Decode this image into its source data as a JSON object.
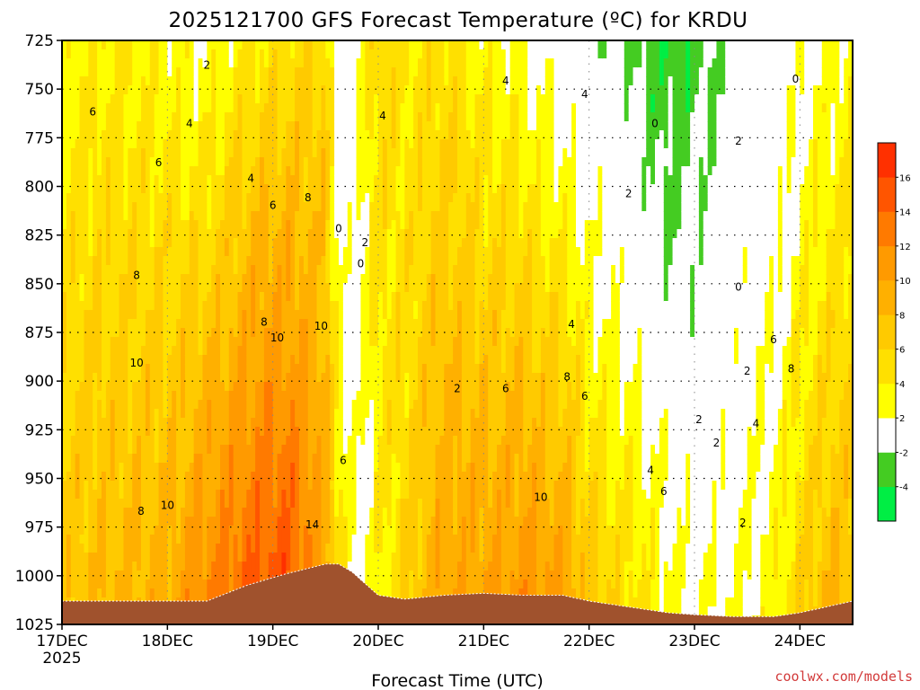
{
  "chart_data": {
    "type": "heatmap",
    "title": "2025121700 GFS Forecast Temperature (ºC) for KRDU",
    "xlabel": "Forecast Time (UTC)",
    "ylabel": "",
    "x_ticks": [
      "17DEC",
      "18DEC",
      "19DEC",
      "20DEC",
      "21DEC",
      "22DEC",
      "23DEC",
      "24DEC"
    ],
    "x_tick_year": "2025",
    "x_range_hours": [
      0,
      180
    ],
    "y_ticks": [
      725,
      750,
      775,
      800,
      825,
      850,
      875,
      900,
      925,
      950,
      975,
      1000,
      1025
    ],
    "y_range_hpa": [
      725,
      1025
    ],
    "grid": true,
    "colorbar": {
      "levels": [
        -6,
        -4,
        -2,
        2,
        4,
        6,
        8,
        10,
        12,
        14,
        16,
        18
      ],
      "labels": [
        "-4",
        "-2",
        "2",
        "4",
        "6",
        "8",
        "10",
        "12",
        "14",
        "16"
      ],
      "label_values": [
        -4,
        -2,
        2,
        4,
        6,
        8,
        10,
        12,
        14,
        16
      ],
      "colors": [
        "#00ee44",
        "#44cc22",
        "#ffffff",
        "#ffff00",
        "#ffe000",
        "#ffca00",
        "#ffb000",
        "#ff9a00",
        "#ff7a00",
        "#ff5500",
        "#ff3000"
      ]
    },
    "zero_line_color": "#b0127a",
    "terrain_color": "#a0522d",
    "profile_times_hours": [
      0,
      9,
      24,
      33,
      42,
      51,
      60,
      63,
      66,
      69,
      72,
      78,
      87,
      96,
      105,
      114,
      120,
      129,
      138,
      144,
      153,
      162,
      168,
      174,
      180
    ],
    "profile_surface_hpa": [
      1013,
      1013,
      1013,
      1013,
      1005,
      999,
      994,
      994,
      998,
      1004,
      1010,
      1012,
      1010,
      1009,
      1010,
      1010,
      1013,
      1016,
      1019,
      1020,
      1021,
      1021,
      1019,
      1016,
      1013
    ],
    "profile_t_surface": [
      7,
      8,
      9,
      12,
      14,
      15,
      10,
      5,
      2,
      1,
      3,
      6,
      10,
      10,
      11,
      10,
      7,
      5,
      3,
      2,
      2,
      3,
      6,
      8,
      8
    ],
    "profile_t_top": [
      3,
      4,
      3,
      2,
      4,
      5,
      6,
      -1,
      0,
      4,
      6,
      4,
      5,
      3,
      2,
      0,
      -1,
      -2,
      -4,
      -3,
      -1,
      0,
      1,
      2,
      3
    ],
    "contour_labels": [
      {
        "text": "2",
        "t": 33,
        "p": 738
      },
      {
        "text": "6",
        "t": 7,
        "p": 762
      },
      {
        "text": "4",
        "t": 29,
        "p": 768
      },
      {
        "text": "6",
        "t": 22,
        "p": 788
      },
      {
        "text": "4",
        "t": 43,
        "p": 796
      },
      {
        "text": "6",
        "t": 48,
        "p": 810
      },
      {
        "text": "8",
        "t": 56,
        "p": 806
      },
      {
        "text": "4",
        "t": 73,
        "p": 764
      },
      {
        "text": "0",
        "t": 63,
        "p": 822
      },
      {
        "text": "2",
        "t": 69,
        "p": 829
      },
      {
        "text": "0",
        "t": 68,
        "p": 840
      },
      {
        "text": "4",
        "t": 101,
        "p": 746
      },
      {
        "text": "4",
        "t": 119,
        "p": 753
      },
      {
        "text": "0",
        "t": 135,
        "p": 768
      },
      {
        "text": "2",
        "t": 154,
        "p": 777
      },
      {
        "text": "0",
        "t": 167,
        "p": 745
      },
      {
        "text": "2",
        "t": 129,
        "p": 804
      },
      {
        "text": "0",
        "t": 154,
        "p": 852
      },
      {
        "text": "8",
        "t": 17,
        "p": 846
      },
      {
        "text": "8",
        "t": 46,
        "p": 870
      },
      {
        "text": "10",
        "t": 49,
        "p": 878
      },
      {
        "text": "10",
        "t": 59,
        "p": 872
      },
      {
        "text": "10",
        "t": 17,
        "p": 891
      },
      {
        "text": "4",
        "t": 116,
        "p": 871
      },
      {
        "text": "6",
        "t": 162,
        "p": 879
      },
      {
        "text": "2",
        "t": 156,
        "p": 895
      },
      {
        "text": "8",
        "t": 166,
        "p": 894
      },
      {
        "text": "2",
        "t": 90,
        "p": 904
      },
      {
        "text": "6",
        "t": 101,
        "p": 904
      },
      {
        "text": "8",
        "t": 115,
        "p": 898
      },
      {
        "text": "6",
        "t": 119,
        "p": 908
      },
      {
        "text": "2",
        "t": 145,
        "p": 920
      },
      {
        "text": "4",
        "t": 158,
        "p": 922
      },
      {
        "text": "6",
        "t": 64,
        "p": 941
      },
      {
        "text": "2",
        "t": 149,
        "p": 932
      },
      {
        "text": "4",
        "t": 134,
        "p": 946
      },
      {
        "text": "6",
        "t": 137,
        "p": 957
      },
      {
        "text": "10",
        "t": 109,
        "p": 960
      },
      {
        "text": "8",
        "t": 18,
        "p": 967
      },
      {
        "text": "10",
        "t": 24,
        "p": 964
      },
      {
        "text": "14",
        "t": 57,
        "p": 974
      },
      {
        "text": "2",
        "t": 155,
        "p": 973
      }
    ]
  },
  "credit": "coolwx.com/models"
}
